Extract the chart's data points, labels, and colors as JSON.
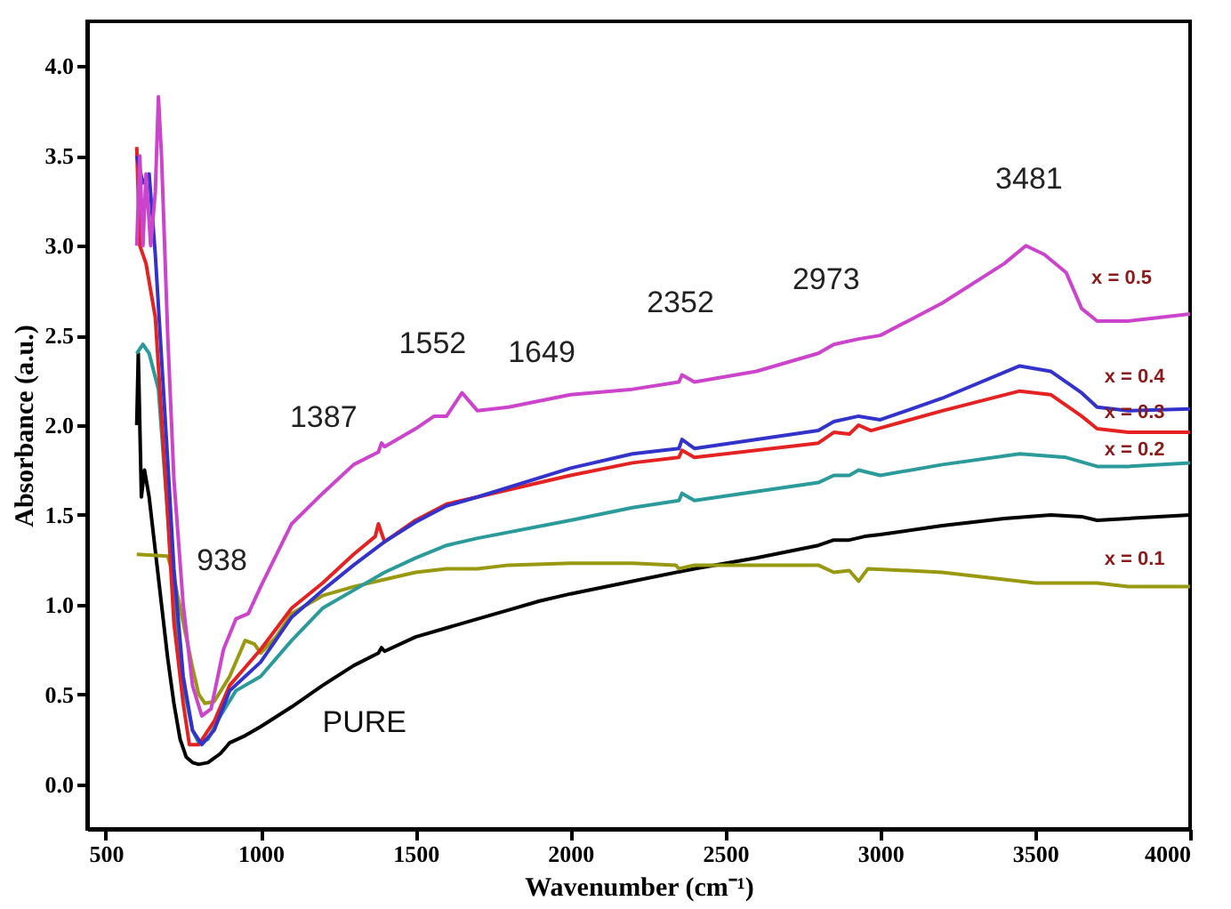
{
  "chart_data": {
    "type": "line",
    "xlabel": "Wavenumber (cm⁻¹)",
    "ylabel": "Absorbance (a.u.)",
    "xlim": [
      440,
      4000
    ],
    "ylim": [
      -0.25,
      4.25
    ],
    "xticks": [
      500,
      1000,
      1500,
      2000,
      2500,
      3000,
      3500,
      4000
    ],
    "yticks": [
      {
        "value": 0,
        "label": "0.0"
      },
      {
        "value": 0.5,
        "label": "0.5"
      },
      {
        "value": 1,
        "label": "1.0"
      },
      {
        "value": 1.5,
        "label": "1.5"
      },
      {
        "value": 2,
        "label": "2.0"
      },
      {
        "value": 2.5,
        "label": "2.5"
      },
      {
        "value": 3,
        "label": "3.0"
      },
      {
        "value": 3.5,
        "label": "3.5"
      },
      {
        "value": 4,
        "label": "4.0"
      }
    ],
    "grid": false,
    "marker": "none",
    "line_style": "solid",
    "series": [
      {
        "name": "PURE",
        "color": "#000000",
        "x": [
          600,
          605,
          615,
          625,
          640,
          660,
          680,
          700,
          720,
          740,
          760,
          780,
          800,
          830,
          870,
          900,
          950,
          1000,
          1100,
          1200,
          1300,
          1380,
          1390,
          1400,
          1500,
          1600,
          1700,
          1800,
          1900,
          2000,
          2200,
          2400,
          2600,
          2800,
          2850,
          2900,
          2950,
          3000,
          3200,
          3400,
          3550,
          3650,
          3700,
          3800,
          4000
        ],
        "values": [
          2.0,
          2.4,
          1.6,
          1.75,
          1.6,
          1.3,
          1.0,
          0.7,
          0.45,
          0.25,
          0.15,
          0.12,
          0.11,
          0.12,
          0.17,
          0.23,
          0.27,
          0.32,
          0.43,
          0.55,
          0.66,
          0.73,
          0.76,
          0.74,
          0.82,
          0.87,
          0.92,
          0.97,
          1.02,
          1.06,
          1.13,
          1.2,
          1.26,
          1.33,
          1.36,
          1.36,
          1.38,
          1.39,
          1.44,
          1.48,
          1.5,
          1.49,
          1.47,
          1.48,
          1.5
        ]
      },
      {
        "name": "x = 0.1",
        "color": "#999911",
        "x": [
          600,
          700,
          720,
          750,
          780,
          800,
          820,
          850,
          900,
          950,
          980,
          1000,
          1050,
          1100,
          1150,
          1200,
          1300,
          1400,
          1500,
          1600,
          1700,
          1800,
          2000,
          2200,
          2340,
          2350,
          2400,
          2800,
          2850,
          2900,
          2930,
          2960,
          3200,
          3500,
          3700,
          3800,
          4000
        ],
        "values": [
          1.28,
          1.27,
          1.15,
          0.9,
          0.65,
          0.5,
          0.45,
          0.46,
          0.6,
          0.8,
          0.78,
          0.73,
          0.82,
          0.95,
          1.0,
          1.05,
          1.1,
          1.14,
          1.18,
          1.2,
          1.2,
          1.22,
          1.23,
          1.23,
          1.22,
          1.2,
          1.22,
          1.22,
          1.18,
          1.19,
          1.13,
          1.2,
          1.18,
          1.12,
          1.12,
          1.1,
          1.1
        ]
      },
      {
        "name": "x = 0.2",
        "color": "#2a9a9a",
        "x": [
          600,
          620,
          640,
          670,
          700,
          720,
          750,
          780,
          800,
          830,
          870,
          920,
          1000,
          1100,
          1200,
          1300,
          1400,
          1500,
          1600,
          1700,
          2000,
          2200,
          2350,
          2360,
          2400,
          2800,
          2850,
          2900,
          2930,
          3000,
          3200,
          3450,
          3600,
          3700,
          3800,
          4000
        ],
        "values": [
          2.4,
          2.45,
          2.4,
          2.2,
          1.5,
          1.0,
          0.55,
          0.3,
          0.23,
          0.25,
          0.38,
          0.52,
          0.6,
          0.8,
          0.98,
          1.08,
          1.18,
          1.26,
          1.33,
          1.37,
          1.47,
          1.54,
          1.58,
          1.62,
          1.58,
          1.68,
          1.72,
          1.72,
          1.75,
          1.72,
          1.78,
          1.84,
          1.82,
          1.77,
          1.77,
          1.79
        ]
      },
      {
        "name": "x = 0.3",
        "color": "#e52222",
        "x": [
          600,
          610,
          630,
          660,
          700,
          720,
          750,
          770,
          800,
          850,
          900,
          1000,
          1100,
          1200,
          1300,
          1370,
          1380,
          1400,
          1500,
          1600,
          1700,
          2000,
          2200,
          2350,
          2360,
          2400,
          2800,
          2850,
          2900,
          2930,
          2970,
          3200,
          3450,
          3550,
          3650,
          3700,
          3800,
          4000
        ],
        "values": [
          3.55,
          3.0,
          2.9,
          2.6,
          1.5,
          0.9,
          0.45,
          0.22,
          0.22,
          0.35,
          0.55,
          0.75,
          0.98,
          1.12,
          1.28,
          1.38,
          1.45,
          1.35,
          1.47,
          1.56,
          1.6,
          1.72,
          1.79,
          1.82,
          1.86,
          1.82,
          1.9,
          1.96,
          1.95,
          2.0,
          1.97,
          2.08,
          2.19,
          2.17,
          2.05,
          1.98,
          1.96,
          1.96
        ]
      },
      {
        "name": "x = 0.4",
        "color": "#3333cc",
        "x": [
          600,
          620,
          640,
          660,
          700,
          720,
          750,
          780,
          810,
          850,
          900,
          1000,
          1100,
          1200,
          1300,
          1400,
          1500,
          1600,
          1700,
          2000,
          2200,
          2350,
          2360,
          2400,
          2800,
          2850,
          2930,
          3000,
          3200,
          3450,
          3550,
          3650,
          3700,
          3800,
          4000
        ],
        "values": [
          3.5,
          3.35,
          3.4,
          2.95,
          1.8,
          1.2,
          0.6,
          0.3,
          0.22,
          0.3,
          0.52,
          0.68,
          0.93,
          1.08,
          1.22,
          1.35,
          1.46,
          1.55,
          1.6,
          1.76,
          1.84,
          1.87,
          1.92,
          1.87,
          1.97,
          2.02,
          2.05,
          2.03,
          2.15,
          2.33,
          2.3,
          2.18,
          2.1,
          2.08,
          2.09
        ]
      },
      {
        "name": "x = 0.5",
        "color": "#cc44cc",
        "x": [
          600,
          610,
          620,
          630,
          645,
          660,
          670,
          680,
          700,
          720,
          750,
          780,
          810,
          840,
          880,
          920,
          960,
          1000,
          1100,
          1200,
          1300,
          1380,
          1390,
          1400,
          1500,
          1560,
          1600,
          1650,
          1700,
          1800,
          2000,
          2200,
          2350,
          2360,
          2400,
          2600,
          2800,
          2850,
          2930,
          3000,
          3200,
          3400,
          3470,
          3530,
          3600,
          3650,
          3700,
          3800,
          3900,
          4000
        ],
        "values": [
          3.0,
          3.5,
          3.0,
          3.4,
          3.0,
          3.3,
          3.83,
          3.5,
          2.5,
          1.7,
          1.0,
          0.55,
          0.38,
          0.42,
          0.75,
          0.92,
          0.95,
          1.1,
          1.45,
          1.62,
          1.78,
          1.85,
          1.9,
          1.88,
          1.98,
          2.05,
          2.05,
          2.18,
          2.08,
          2.1,
          2.17,
          2.2,
          2.24,
          2.28,
          2.24,
          2.3,
          2.4,
          2.45,
          2.48,
          2.5,
          2.68,
          2.9,
          3.0,
          2.95,
          2.85,
          2.65,
          2.58,
          2.58,
          2.6,
          2.62
        ]
      }
    ],
    "annotations": [
      "938",
      "1387",
      "1552",
      "1649",
      "2352",
      "2973",
      "3481"
    ]
  }
}
